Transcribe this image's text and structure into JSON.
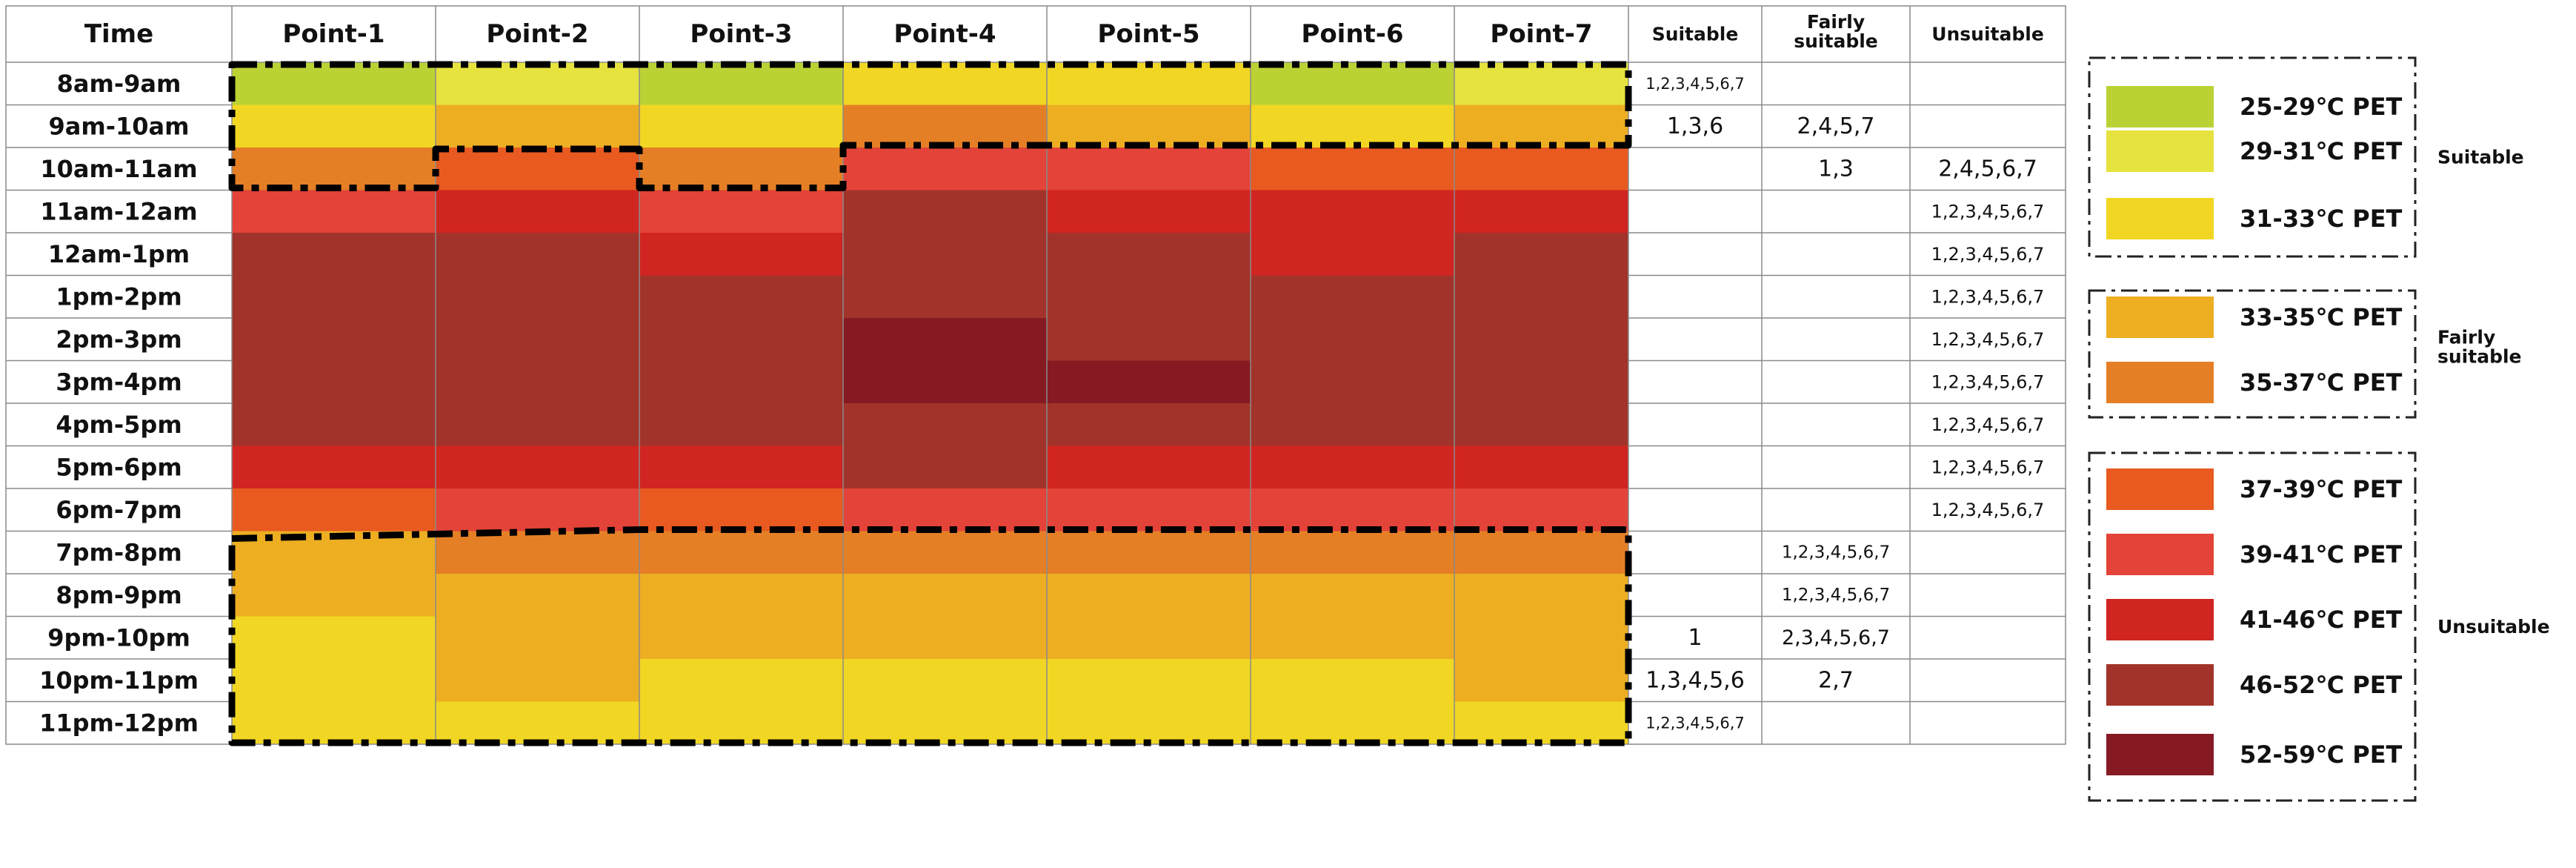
{
  "chart_data": {
    "type": "heatmap",
    "corner_label": "Time",
    "columns": [
      "Point-1",
      "Point-2",
      "Point-3",
      "Point-4",
      "Point-5",
      "Point-6",
      "Point-7"
    ],
    "summary_columns": [
      "Suitable",
      "Fairly suitable",
      "Unsuitable"
    ],
    "rows": [
      {
        "time": "8am-9am",
        "cells": [
          "25-29℃ PET",
          "29-31℃ PET",
          "25-29℃ PET",
          "31-33℃ PET",
          "31-33℃ PET",
          "25-29℃ PET",
          "29-31℃ PET"
        ],
        "suitable": "1,2,3,4,5,6,7",
        "fairly": "",
        "unsuitable": ""
      },
      {
        "time": "9am-10am",
        "cells": [
          "31-33℃ PET",
          "33-35℃ PET",
          "31-33℃ PET",
          "35-37℃ PET",
          "33-35℃ PET",
          "31-33℃ PET",
          "33-35℃ PET"
        ],
        "suitable": "1,3,6",
        "fairly": "2,4,5,7",
        "unsuitable": ""
      },
      {
        "time": "10am-11am",
        "cells": [
          "35-37℃ PET",
          "37-39℃ PET",
          "35-37℃ PET",
          "39-41℃ PET",
          "39-41℃ PET",
          "37-39℃ PET",
          "37-39℃ PET"
        ],
        "suitable": "",
        "fairly": "1,3",
        "unsuitable": "2,4,5,6,7"
      },
      {
        "time": "11am-12am",
        "cells": [
          "39-41℃ PET",
          "41-46℃ PET",
          "39-41℃ PET",
          "46-52℃ PET",
          "41-46℃ PET",
          "41-46℃ PET",
          "41-46℃ PET"
        ],
        "suitable": "",
        "fairly": "",
        "unsuitable": "1,2,3,4,5,6,7"
      },
      {
        "time": "12am-1pm",
        "cells": [
          "46-52℃ PET",
          "46-52℃ PET",
          "41-46℃ PET",
          "46-52℃ PET",
          "46-52℃ PET",
          "41-46℃ PET",
          "46-52℃ PET"
        ],
        "suitable": "",
        "fairly": "",
        "unsuitable": "1,2,3,4,5,6,7"
      },
      {
        "time": "1pm-2pm",
        "cells": [
          "46-52℃ PET",
          "46-52℃ PET",
          "46-52℃ PET",
          "46-52℃ PET",
          "46-52℃ PET",
          "46-52℃ PET",
          "46-52℃ PET"
        ],
        "suitable": "",
        "fairly": "",
        "unsuitable": "1,2,3,4,5,6,7"
      },
      {
        "time": "2pm-3pm",
        "cells": [
          "46-52℃ PET",
          "46-52℃ PET",
          "46-52℃ PET",
          "52-59℃ PET",
          "46-52℃ PET",
          "46-52℃ PET",
          "46-52℃ PET"
        ],
        "suitable": "",
        "fairly": "",
        "unsuitable": "1,2,3,4,5,6,7"
      },
      {
        "time": "3pm-4pm",
        "cells": [
          "46-52℃ PET",
          "46-52℃ PET",
          "46-52℃ PET",
          "52-59℃ PET",
          "52-59℃ PET",
          "46-52℃ PET",
          "46-52℃ PET"
        ],
        "suitable": "",
        "fairly": "",
        "unsuitable": "1,2,3,4,5,6,7"
      },
      {
        "time": "4pm-5pm",
        "cells": [
          "46-52℃ PET",
          "46-52℃ PET",
          "46-52℃ PET",
          "46-52℃ PET",
          "46-52℃ PET",
          "46-52℃ PET",
          "46-52℃ PET"
        ],
        "suitable": "",
        "fairly": "",
        "unsuitable": "1,2,3,4,5,6,7"
      },
      {
        "time": "5pm-6pm",
        "cells": [
          "41-46℃ PET",
          "41-46℃ PET",
          "41-46℃ PET",
          "46-52℃ PET",
          "41-46℃ PET",
          "41-46℃ PET",
          "41-46℃ PET"
        ],
        "suitable": "",
        "fairly": "",
        "unsuitable": "1,2,3,4,5,6,7"
      },
      {
        "time": "6pm-7pm",
        "cells": [
          "37-39℃ PET",
          "39-41℃ PET",
          "37-39℃ PET",
          "39-41℃ PET",
          "39-41℃ PET",
          "39-41℃ PET",
          "39-41℃ PET"
        ],
        "suitable": "",
        "fairly": "",
        "unsuitable": "1,2,3,4,5,6,7"
      },
      {
        "time": "7pm-8pm",
        "cells": [
          "33-35℃ PET",
          "35-37℃ PET",
          "35-37℃ PET",
          "35-37℃ PET",
          "35-37℃ PET",
          "35-37℃ PET",
          "35-37℃ PET"
        ],
        "suitable": "",
        "fairly": "1,2,3,4,5,6,7",
        "unsuitable": ""
      },
      {
        "time": "8pm-9pm",
        "cells": [
          "33-35℃ PET",
          "33-35℃ PET",
          "33-35℃ PET",
          "33-35℃ PET",
          "33-35℃ PET",
          "33-35℃ PET",
          "33-35℃ PET"
        ],
        "suitable": "",
        "fairly": "1,2,3,4,5,6,7",
        "unsuitable": ""
      },
      {
        "time": "9pm-10pm",
        "cells": [
          "31-33℃ PET",
          "33-35℃ PET",
          "33-35℃ PET",
          "33-35℃ PET",
          "33-35℃ PET",
          "33-35℃ PET",
          "33-35℃ PET"
        ],
        "suitable": "1",
        "fairly": "2,3,4,5,6,7",
        "unsuitable": ""
      },
      {
        "time": "10pm-11pm",
        "cells": [
          "31-33℃ PET",
          "33-35℃ PET",
          "31-33℃ PET",
          "31-33℃ PET",
          "31-33℃ PET",
          "31-33℃ PET",
          "33-35℃ PET"
        ],
        "suitable": "1,3,4,5,6",
        "fairly": "2,7",
        "unsuitable": ""
      },
      {
        "time": "11pm-12pm",
        "cells": [
          "31-33℃ PET",
          "31-33℃ PET",
          "31-33℃ PET",
          "31-33℃ PET",
          "31-33℃ PET",
          "31-33℃ PET",
          "31-33℃ PET"
        ],
        "suitable": "1,2,3,4,5,6,7",
        "fairly": "",
        "unsuitable": ""
      }
    ],
    "legend": [
      {
        "group": "Suitable",
        "items": [
          {
            "label": "25-29℃ PET",
            "color": "#BCD234"
          },
          {
            "label": "29-31℃ PET",
            "color": "#E6E33E"
          },
          {
            "label": "31-33℃ PET",
            "color": "#F1D723"
          }
        ]
      },
      {
        "group": "Fairly suitable",
        "items": [
          {
            "label": "33-35℃ PET",
            "color": "#EDAE22"
          },
          {
            "label": "35-37℃ PET",
            "color": "#E57F26"
          }
        ]
      },
      {
        "group": "Unsuitable",
        "items": [
          {
            "label": "37-39℃ PET",
            "color": "#E85A20"
          },
          {
            "label": "39-41℃ PET",
            "color": "#E34338"
          },
          {
            "label": "41-46℃ PET",
            "color": "#D02520"
          },
          {
            "label": "46-52℃ PET",
            "color": "#A2332A"
          },
          {
            "label": "52-59℃ PET",
            "color": "#861A22"
          }
        ]
      }
    ],
    "colors": {
      "grid": "#8A8A8A",
      "text": "#111111",
      "outline": "#000000"
    }
  }
}
